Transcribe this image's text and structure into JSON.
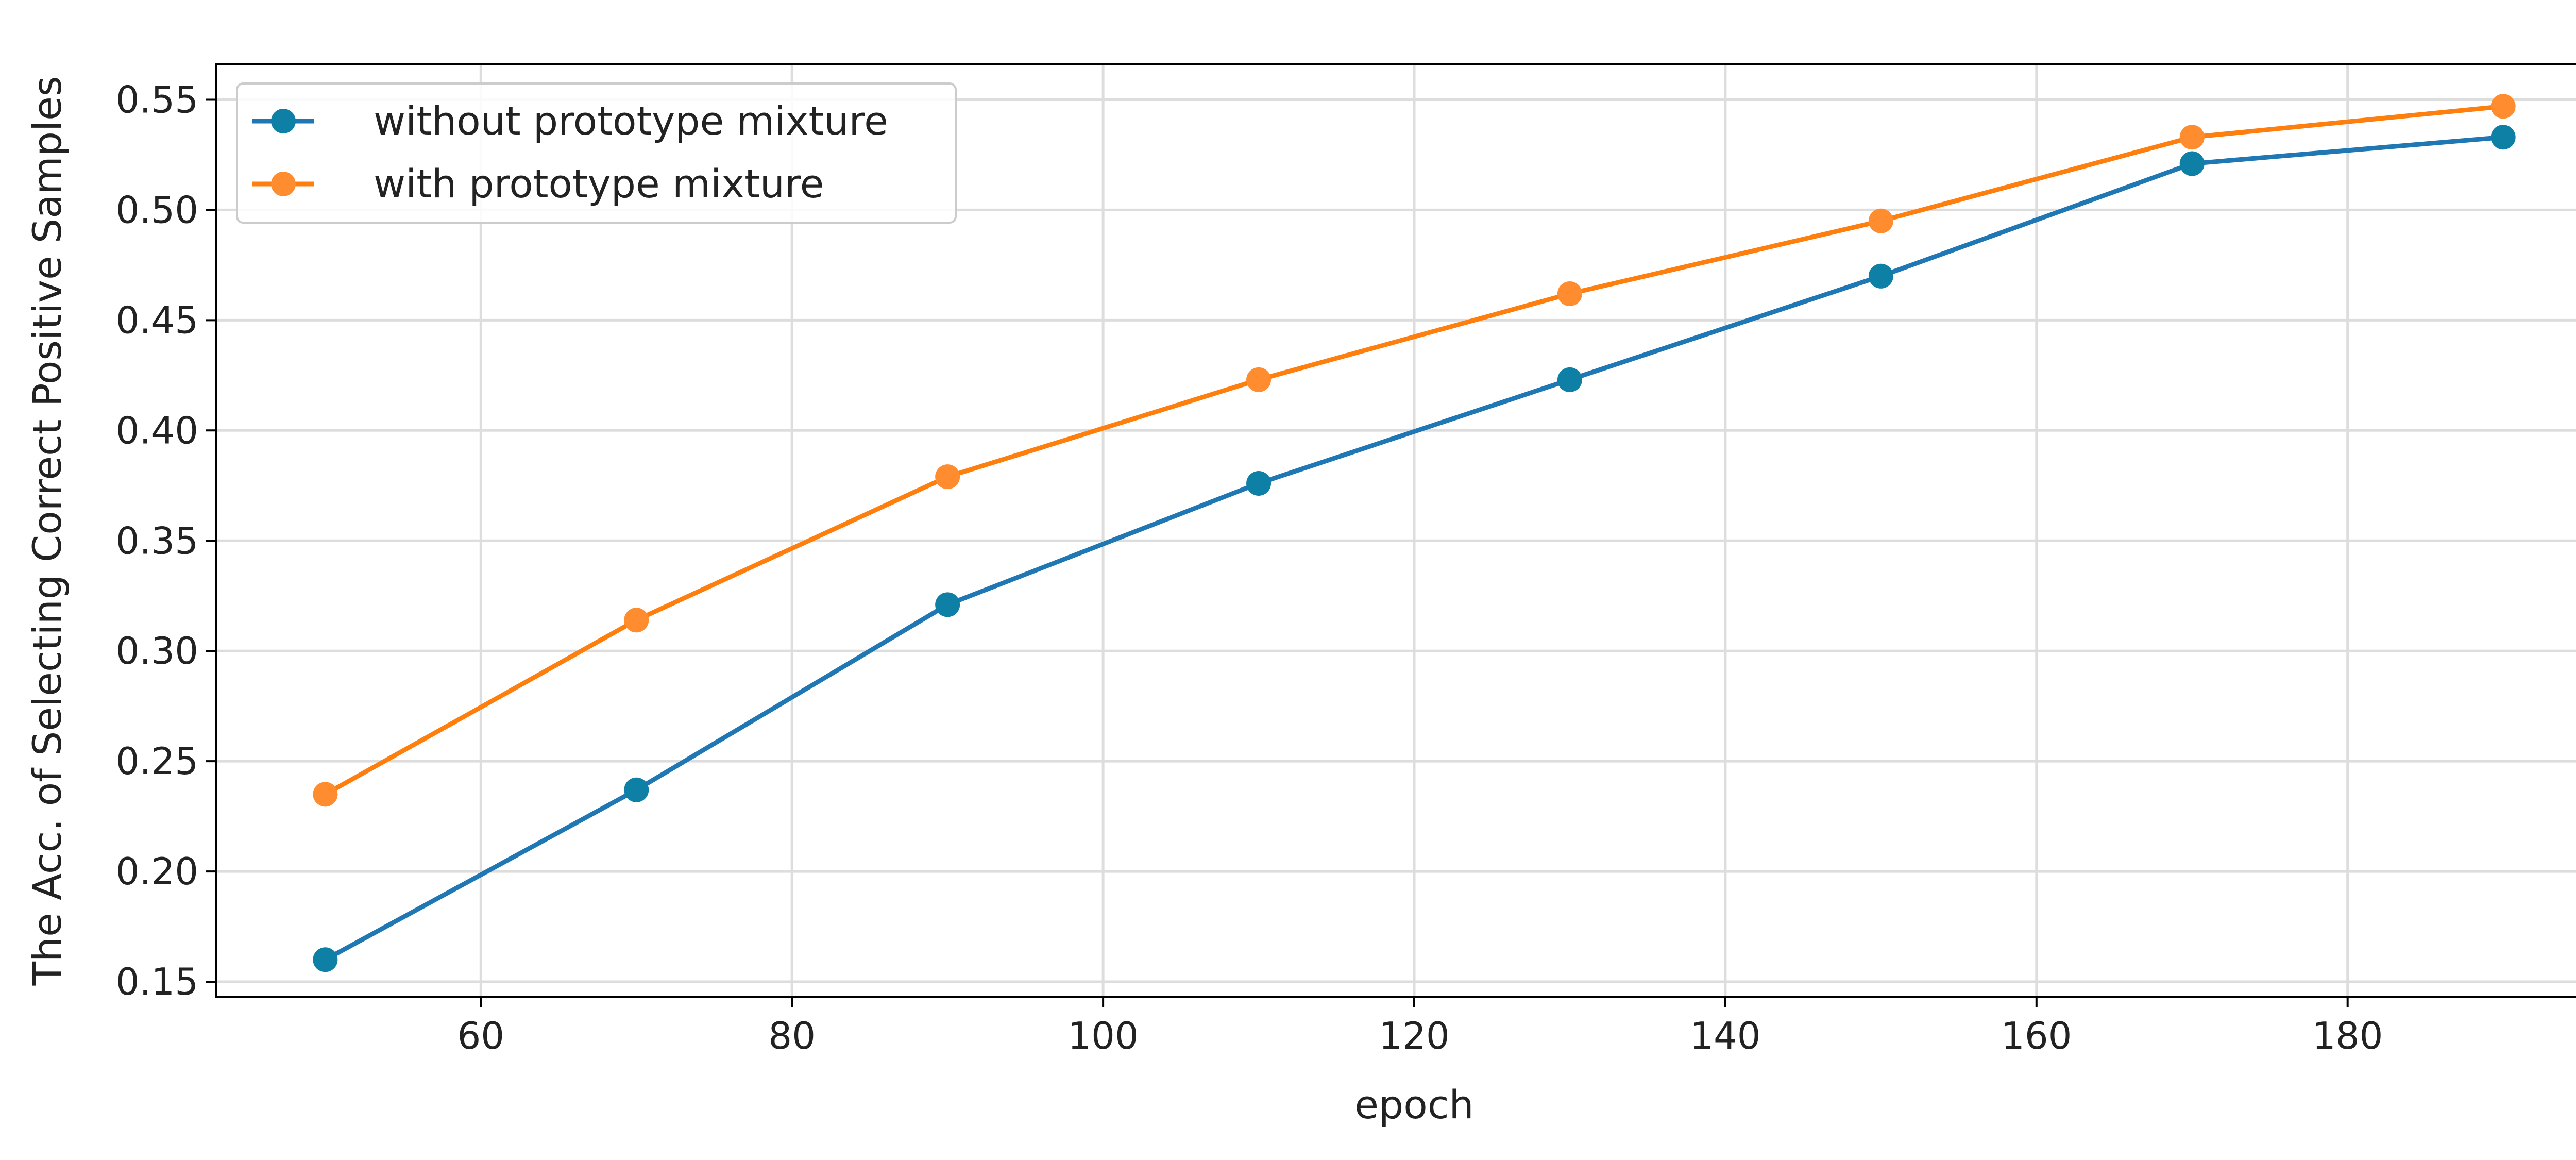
{
  "chart_data": {
    "type": "line",
    "title": "",
    "xlabel": "epoch",
    "ylabel": "The Acc. of Selecting Correct Positive Samples",
    "xlim": [
      43,
      197
    ],
    "ylim": [
      0.143,
      0.566
    ],
    "x_ticks": [
      60,
      80,
      100,
      120,
      140,
      160,
      180
    ],
    "y_ticks": [
      0.15,
      0.2,
      0.25,
      0.3,
      0.35,
      0.4,
      0.45,
      0.5,
      0.55
    ],
    "x_tick_labels": [
      "60",
      "80",
      "100",
      "120",
      "140",
      "160",
      "180"
    ],
    "y_tick_labels": [
      "0.15",
      "0.20",
      "0.25",
      "0.30",
      "0.35",
      "0.40",
      "0.45",
      "0.50",
      "0.55"
    ],
    "grid": true,
    "legend_position": "top-left",
    "x": [
      50,
      70,
      90,
      110,
      130,
      150,
      170,
      190
    ],
    "series": [
      {
        "name": "without prototype mixture",
        "color": "#1f77b4",
        "marker_color": "#0e7fa5",
        "values": [
          0.16,
          0.237,
          0.321,
          0.376,
          0.423,
          0.47,
          0.521,
          0.533
        ]
      },
      {
        "name": "with prototype mixture",
        "color": "#ff7f0e",
        "marker_color": "#ff8c2e",
        "values": [
          0.235,
          0.314,
          0.379,
          0.423,
          0.462,
          0.495,
          0.533,
          0.547
        ]
      }
    ]
  }
}
